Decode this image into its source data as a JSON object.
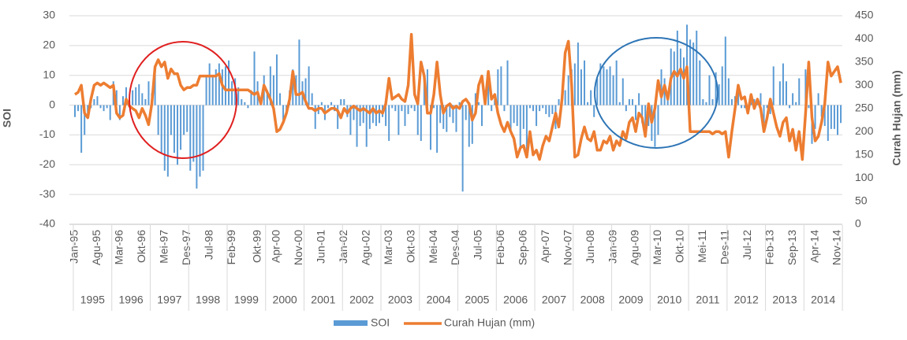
{
  "chart_data": {
    "type": "bar_line",
    "y_label": "SOI",
    "y2_label": "Curah Hujan (mm)",
    "ylim": [
      -40,
      30
    ],
    "yticks": [
      -40,
      -30,
      -20,
      -10,
      0,
      10,
      20,
      30
    ],
    "y2lim": [
      0,
      450
    ],
    "y2ticks": [
      0,
      50,
      100,
      150,
      200,
      250,
      300,
      350,
      400,
      450
    ],
    "grid": true,
    "legend": "bottom",
    "x_groups": [
      "1995",
      "1996",
      "1997",
      "1998",
      "1999",
      "2000",
      "2001",
      "2002",
      "2003",
      "2004",
      "2005",
      "2006",
      "2007",
      "2008",
      "2009",
      "2010",
      "2011",
      "2012",
      "2013",
      "2014"
    ],
    "categories": [
      "Jan-95",
      null,
      null,
      null,
      null,
      null,
      null,
      "Agu-95",
      null,
      null,
      null,
      null,
      null,
      null,
      "Mar-96",
      null,
      null,
      null,
      null,
      null,
      null,
      "Okt-96",
      null,
      null,
      null,
      null,
      null,
      null,
      "Mei-97",
      null,
      null,
      null,
      null,
      null,
      null,
      "Des-97",
      null,
      null,
      null,
      null,
      null,
      null,
      "Jul-98",
      null,
      null,
      null,
      null,
      null,
      null,
      "Feb-99",
      null,
      null,
      null,
      null,
      null,
      null,
      null,
      "Okt-99",
      null,
      null,
      null,
      null,
      null,
      "Apr-00",
      null,
      null,
      null,
      null,
      null,
      null,
      "Nov-00",
      null,
      null,
      null,
      null,
      null,
      null,
      "Jun-01",
      null,
      null,
      null,
      null,
      null,
      null,
      "Jan-02",
      null,
      null,
      null,
      null,
      null,
      null,
      "Agu-02",
      null,
      null,
      null,
      null,
      null,
      null,
      "Mar-03",
      null,
      null,
      null,
      null,
      null,
      null,
      "Okt-03",
      null,
      null,
      null,
      null,
      null,
      null,
      "Mei-04",
      null,
      null,
      null,
      null,
      null,
      null,
      "Des-04",
      null,
      null,
      null,
      null,
      null,
      null,
      "Jul-05",
      null,
      null,
      null,
      null,
      null,
      null,
      "Feb-06",
      null,
      null,
      null,
      null,
      null,
      null,
      "Sep-06",
      null,
      null,
      null,
      null,
      null,
      null,
      "Apr-07",
      null,
      null,
      null,
      null,
      null,
      null,
      "Nov-07",
      null,
      null,
      null,
      null,
      null,
      null,
      "Jun-08",
      null,
      null,
      null,
      null,
      null,
      null,
      "Jan-09",
      null,
      null,
      null,
      null,
      null,
      null,
      "Agu-09",
      null,
      null,
      null,
      null,
      null,
      null,
      "Mar-10",
      null,
      null,
      null,
      null,
      null,
      null,
      "Okt-10",
      null,
      null,
      null,
      null,
      null,
      null,
      "Mei-11",
      null,
      null,
      null,
      null,
      null,
      null,
      "Des-11",
      null,
      null,
      null,
      null,
      null,
      null,
      "Jul-12",
      null,
      null,
      null,
      null,
      null,
      null,
      "Feb-13",
      null,
      null,
      null,
      null,
      null,
      null,
      "Sep-13",
      null,
      null,
      null,
      null,
      null,
      null,
      "Apr-14",
      null,
      null,
      null,
      null,
      null,
      null,
      "Nov-14",
      null
    ],
    "series": [
      {
        "name": "SOI",
        "color": "#5b9bd5",
        "values": [
          -4,
          -2,
          -16,
          -10,
          -3,
          -1,
          2,
          3,
          -1,
          -2,
          -1,
          -5,
          8,
          5,
          -5,
          3,
          6,
          2,
          5,
          6,
          7,
          4,
          2,
          8,
          4,
          13,
          -10,
          -16,
          -22,
          -24,
          -10,
          -16,
          -20,
          -15,
          -10,
          -9,
          -22,
          -19,
          -28,
          -24,
          -22,
          10,
          14,
          10,
          12,
          14,
          12,
          13,
          15,
          8,
          9,
          6,
          2,
          1,
          -1,
          5,
          18,
          8,
          2,
          10,
          5,
          13,
          10,
          17,
          4,
          -5,
          -3,
          5,
          12,
          10,
          22,
          8,
          9,
          13,
          4,
          -8,
          -3,
          1,
          -5,
          -1,
          1,
          -2,
          -8,
          2,
          2,
          -4,
          -10,
          -5,
          -14,
          -7,
          -6,
          -14,
          -8,
          -6,
          -7,
          -6,
          -4,
          -7,
          -12,
          -1,
          -2,
          -10,
          -2,
          -7,
          -3,
          -1,
          -2,
          -10,
          -12,
          10,
          12,
          -15,
          -1,
          -16,
          -6,
          -8,
          -9,
          -4,
          -6,
          -9,
          1,
          -29,
          -5,
          -14,
          -13,
          4,
          1,
          -7,
          3,
          10,
          -2,
          2,
          12,
          13,
          -2,
          15,
          -9,
          -6,
          -7,
          -14,
          -8,
          -15,
          -1,
          -2,
          -7,
          -2,
          -1,
          -3,
          -4,
          -3,
          -8,
          2,
          2,
          5,
          10,
          12,
          14,
          21,
          12,
          15,
          1,
          5,
          -4,
          9,
          14,
          13,
          12,
          13,
          10,
          15,
          1,
          9,
          -2,
          2,
          2,
          -5,
          4,
          -6,
          -7,
          -7,
          -12,
          -14,
          -10,
          12,
          9,
          2,
          19,
          18,
          25,
          19,
          16,
          27,
          22,
          21,
          25,
          15,
          2,
          1,
          10,
          2,
          11,
          7,
          13,
          23,
          9,
          2,
          3,
          6,
          -1,
          -1,
          0,
          1,
          2,
          2,
          4,
          -6,
          -1,
          -3,
          13,
          0,
          8,
          14,
          8,
          -1,
          4,
          1,
          9,
          0,
          12,
          -1,
          -13,
          -8,
          4,
          -4,
          -7,
          -12,
          -8,
          -8,
          -10,
          -6
        ]
      },
      {
        "name": "Curah Hujan (mm)",
        "color": "#ed7d31",
        "axis": "y2",
        "values": [
          280,
          285,
          300,
          240,
          230,
          270,
          300,
          305,
          300,
          305,
          300,
          295,
          300,
          240,
          230,
          235,
          270,
          255,
          250,
          245,
          230,
          250,
          235,
          215,
          260,
          340,
          355,
          340,
          350,
          315,
          335,
          325,
          325,
          300,
          290,
          295,
          295,
          300,
          300,
          320,
          320,
          320,
          320,
          320,
          320,
          325,
          300,
          290,
          290,
          290,
          290,
          290,
          290,
          290,
          290,
          285,
          280,
          285,
          260,
          300,
          285,
          270,
          250,
          200,
          205,
          220,
          240,
          270,
          330,
          280,
          280,
          285,
          265,
          250,
          250,
          245,
          250,
          250,
          240,
          245,
          250,
          250,
          245,
          230,
          250,
          240,
          250,
          255,
          250,
          245,
          250,
          245,
          240,
          250,
          240,
          245,
          240,
          260,
          315,
          270,
          275,
          280,
          270,
          265,
          300,
          410,
          280,
          260,
          350,
          320,
          240,
          240,
          280,
          350,
          280,
          240,
          255,
          260,
          250,
          255,
          250,
          265,
          270,
          260,
          225,
          240,
          300,
          320,
          260,
          330,
          270,
          280,
          240,
          215,
          200,
          220,
          200,
          185,
          145,
          165,
          170,
          145,
          200,
          150,
          160,
          140,
          170,
          190,
          180,
          210,
          240,
          210,
          270,
          370,
          395,
          300,
          145,
          150,
          185,
          210,
          185,
          180,
          200,
          160,
          160,
          180,
          175,
          190,
          160,
          180,
          170,
          200,
          185,
          220,
          230,
          200,
          240,
          230,
          190,
          260,
          220,
          250,
          310,
          275,
          300,
          270,
          315,
          330,
          320,
          335,
          315,
          340,
          200,
          200,
          200,
          200,
          200,
          200,
          200,
          195,
          200,
          200,
          195,
          200,
          145,
          200,
          250,
          300,
          270,
          275,
          240,
          280,
          250,
          270,
          250,
          200,
          230,
          270,
          240,
          210,
          190,
          220,
          230,
          180,
          205,
          160,
          200,
          140,
          240,
          350,
          230,
          180,
          190,
          220,
          260,
          350,
          320,
          330,
          340,
          305
        ]
      }
    ]
  }
}
